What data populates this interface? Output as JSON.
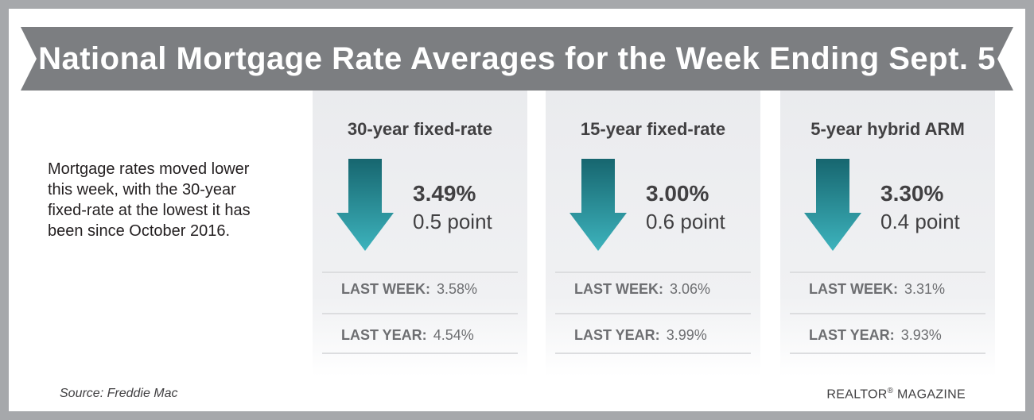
{
  "title": "National Mortgage Rate Averages for the Week Ending Sept. 5",
  "intro": "Mortgage rates moved lower this week, with the 30-year fixed-rate at the lowest it has been since October 2016.",
  "columns": [
    {
      "title": "30-year fixed-rate",
      "rate": "3.49%",
      "change": "0.5 point",
      "direction": "down-arrow-icon",
      "last_week_label": "LAST WEEK:",
      "last_week_value": "3.58%",
      "last_year_label": "LAST YEAR:",
      "last_year_value": "4.54%"
    },
    {
      "title": "15-year fixed-rate",
      "rate": "3.00%",
      "change": "0.6 point",
      "direction": "down-arrow-icon",
      "last_week_label": "LAST WEEK:",
      "last_week_value": "3.06%",
      "last_year_label": "LAST YEAR:",
      "last_year_value": "3.99%"
    },
    {
      "title": "5-year hybrid ARM",
      "rate": "3.30%",
      "change": "0.4 point",
      "direction": "down-arrow-icon",
      "last_week_label": "LAST WEEK:",
      "last_week_value": "3.31%",
      "last_year_label": "LAST YEAR:",
      "last_year_value": "3.93%"
    }
  ],
  "source": "Source: Freddie Mac",
  "brand": {
    "name": "REALTOR",
    "mark": "®",
    "suffix": " MAGAZINE"
  },
  "colors": {
    "banner": "#7c7e81",
    "border": "#a6a8ab",
    "arrow_top": "#17666f",
    "arrow_bottom": "#3db3bd"
  }
}
